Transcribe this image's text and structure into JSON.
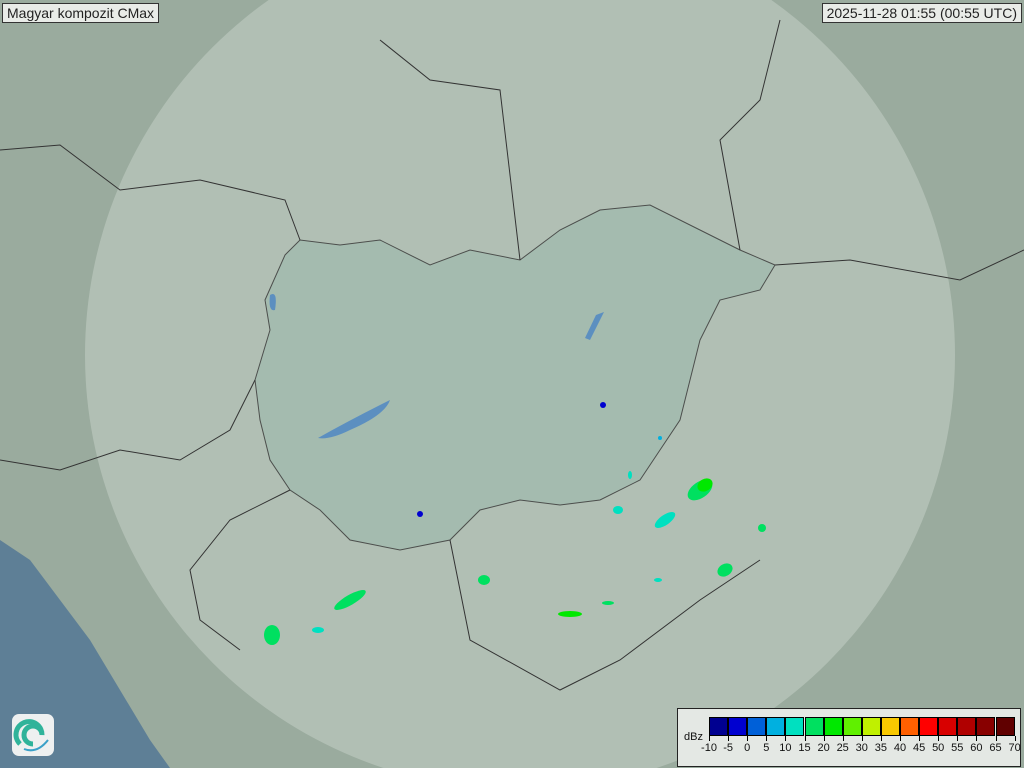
{
  "header": {
    "title": "Magyar kompozit  CMax",
    "timestamp": "2025-11-28 01:55 (00:55 UTC)"
  },
  "legend": {
    "unit": "dBz",
    "labels": [
      "-10",
      "-5",
      "0",
      "5",
      "10",
      "15",
      "20",
      "25",
      "30",
      "35",
      "40",
      "45",
      "50",
      "55",
      "60",
      "65",
      "70"
    ],
    "colors": [
      "#000090",
      "#0000d0",
      "#0060d8",
      "#00b0e0",
      "#00e0c0",
      "#00e060",
      "#00e800",
      "#60f000",
      "#c0f000",
      "#f8c800",
      "#ff6000",
      "#ff0000",
      "#d80000",
      "#b00000",
      "#880000",
      "#600000"
    ]
  },
  "colors": {
    "land": "#9aab9e",
    "coverage": "#b9c7bc",
    "hungary": "#9fb8ab",
    "sea": "#5e7f96",
    "water": "#5c8fc0"
  },
  "logo": {
    "icon": "swirl-logo-icon"
  }
}
